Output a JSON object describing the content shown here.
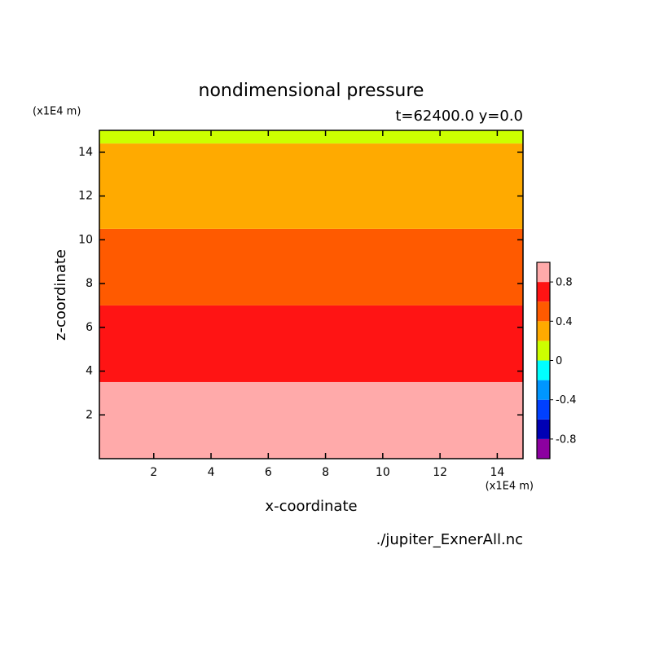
{
  "chart_data": {
    "type": "contour",
    "title": "nondimensional pressure",
    "subtitle": "t=62400.0 y=0.0",
    "x_label": "x-coordinate",
    "y_label": "z-coordinate",
    "x_unit": "(x1E4 m)",
    "y_unit": "(x1E4 m)",
    "source": "./jupiter_ExnerAll.nc",
    "xlim": [
      0.1,
      14.9
    ],
    "ylim": [
      0,
      15
    ],
    "xticks": [
      2,
      4,
      6,
      8,
      10,
      12,
      14
    ],
    "yticks": [
      2,
      4,
      6,
      8,
      10,
      12,
      14
    ],
    "bands": [
      {
        "z": [
          0,
          3.5
        ],
        "color": "#ffaaaa"
      },
      {
        "z": [
          3.5,
          7.0
        ],
        "color": "#ff1414"
      },
      {
        "z": [
          7.0,
          10.5
        ],
        "color": "#ff5a00"
      },
      {
        "z": [
          10.5,
          14.4
        ],
        "color": "#ffaa00"
      },
      {
        "z": [
          14.4,
          15
        ],
        "color": "#ccff00"
      }
    ],
    "colorbar": {
      "levels": [
        -1,
        -0.8,
        -0.6,
        -0.4,
        -0.2,
        0,
        0.2,
        0.4,
        0.6,
        0.8,
        1
      ],
      "colors": [
        "#8c00a0",
        "#0000b4",
        "#0040ff",
        "#0096ff",
        "#00ffff",
        "#ccff00",
        "#ffaa00",
        "#ff5a00",
        "#ff1414",
        "#ffaaaa"
      ],
      "ticks": [
        -0.8,
        -0.4,
        0,
        0.4,
        0.8
      ]
    }
  }
}
